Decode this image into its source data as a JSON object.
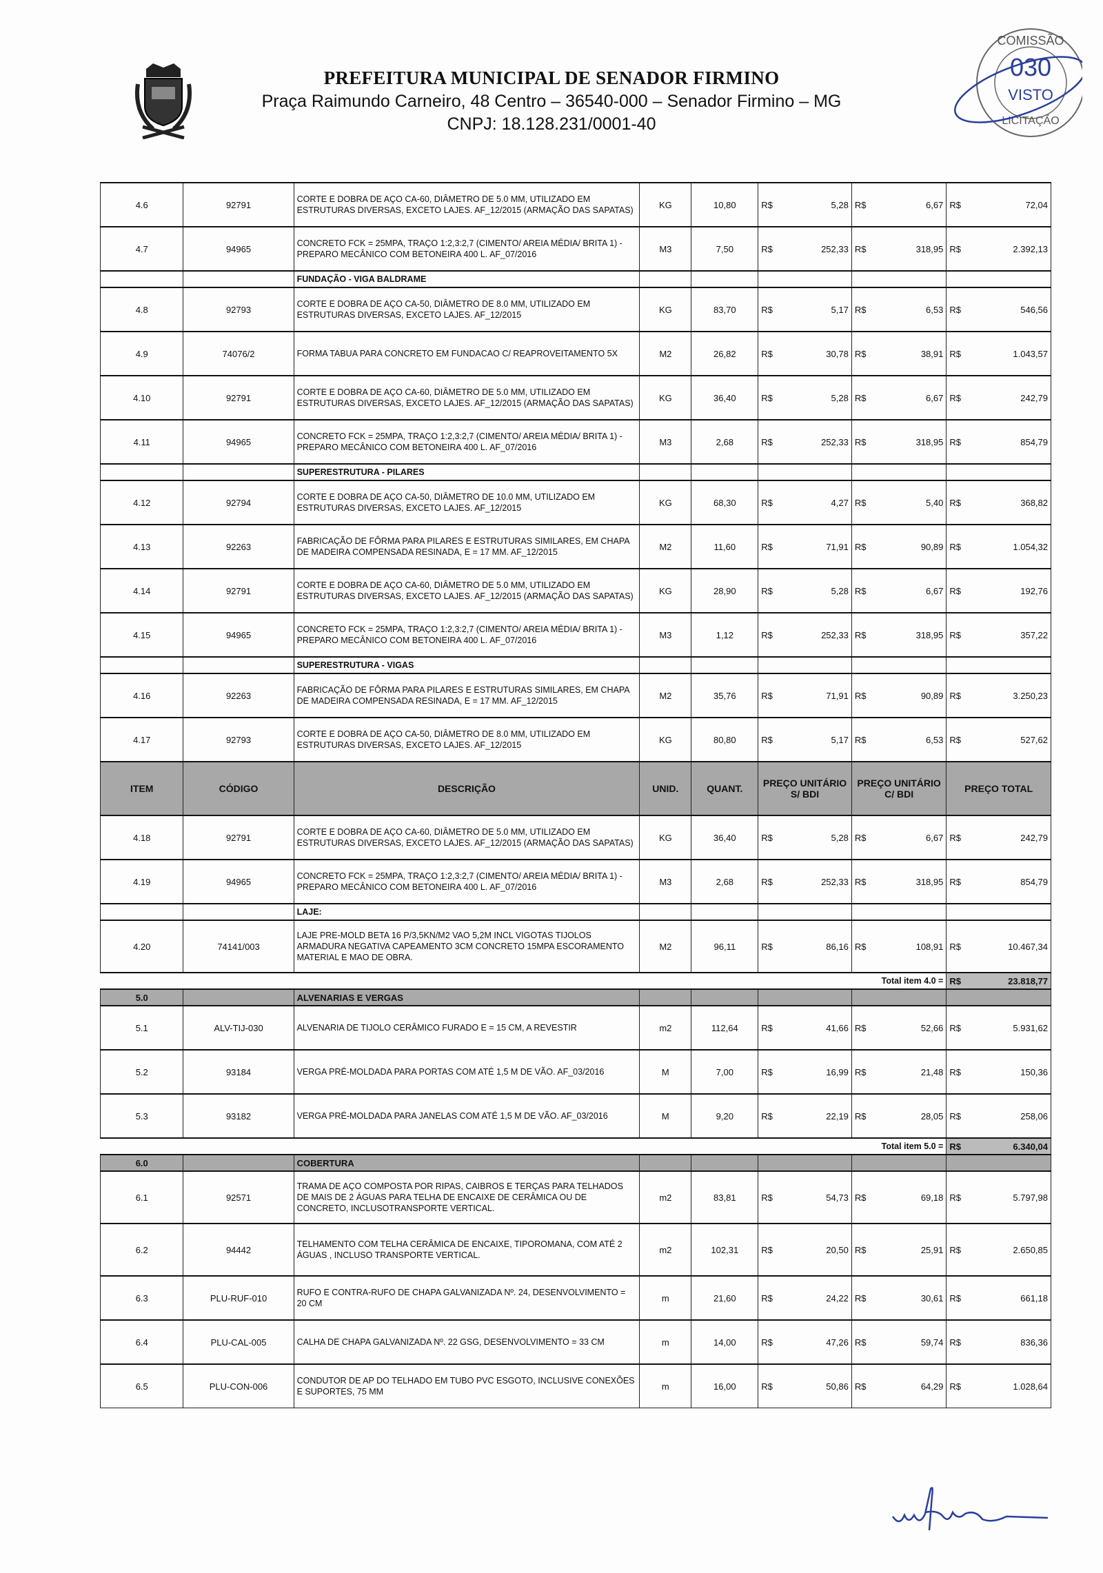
{
  "header": {
    "title": "PREFEITURA MUNICIPAL DE SENADOR FIRMINO",
    "address": "Praça Raimundo Carneiro, 48 Centro – 36540-000 – Senador Firmino – MG",
    "cnpj": "CNPJ: 18.128.231/0001-40"
  },
  "stamp": {
    "text": "COMISSÃO 030 VISTO LICITAÇÃO"
  },
  "signature": {
    "text": "unfila"
  },
  "currency": "R$",
  "columns": [
    "ITEM",
    "CÓDIGO",
    "DESCRIÇÃO",
    "UNID.",
    "QUANT.",
    "PREÇO UNITÁRIO S/ BDI",
    "PREÇO UNITÁRIO C/ BDI",
    "PREÇO TOTAL"
  ],
  "rows": [
    {
      "type": "item",
      "item": "4.6",
      "code": "92791",
      "desc": "CORTE E DOBRA DE AÇO CA-60, DIÂMETRO DE 5.0 MM, UTILIZADO EM ESTRUTURAS DIVERSAS, EXCETO LAJES. AF_12/2015 (ARMAÇÃO DAS SAPATAS)",
      "unit": "KG",
      "qty": "10,80",
      "pu": "5,28",
      "pb": "6,67",
      "total": "72,04"
    },
    {
      "type": "item",
      "item": "4.7",
      "code": "94965",
      "desc": "CONCRETO FCK = 25MPA, TRAÇO 1:2,3:2,7 (CIMENTO/ AREIA MÉDIA/ BRITA 1) - PREPARO MECÂNICO COM BETONEIRA 400 L. AF_07/2016",
      "unit": "M3",
      "qty": "7,50",
      "pu": "252,33",
      "pb": "318,95",
      "total": "2.392,13"
    },
    {
      "type": "section",
      "desc": "FUNDAÇÃO - VIGA BALDRAME"
    },
    {
      "type": "item",
      "item": "4.8",
      "code": "92793",
      "desc": "CORTE E DOBRA DE AÇO CA-50, DIÂMETRO DE 8.0 MM, UTILIZADO EM ESTRUTURAS DIVERSAS, EXCETO LAJES. AF_12/2015",
      "unit": "KG",
      "qty": "83,70",
      "pu": "5,17",
      "pb": "6,53",
      "total": "546,56"
    },
    {
      "type": "item",
      "item": "4.9",
      "code": "74076/2",
      "desc": "FORMA TABUA PARA CONCRETO EM FUNDACAO C/ REAPROVEITAMENTO 5X",
      "unit": "M2",
      "qty": "26,82",
      "pu": "30,78",
      "pb": "38,91",
      "total": "1.043,57"
    },
    {
      "type": "item",
      "item": "4.10",
      "code": "92791",
      "desc": "CORTE E DOBRA DE AÇO CA-60, DIÂMETRO DE 5.0 MM, UTILIZADO EM ESTRUTURAS DIVERSAS, EXCETO LAJES. AF_12/2015 (ARMAÇÃO DAS SAPATAS)",
      "unit": "KG",
      "qty": "36,40",
      "pu": "5,28",
      "pb": "6,67",
      "total": "242,79"
    },
    {
      "type": "item",
      "item": "4.11",
      "code": "94965",
      "desc": "CONCRETO FCK = 25MPA, TRAÇO 1:2,3:2,7 (CIMENTO/ AREIA MÉDIA/ BRITA 1) - PREPARO MECÂNICO COM BETONEIRA 400 L. AF_07/2016",
      "unit": "M3",
      "qty": "2,68",
      "pu": "252,33",
      "pb": "318,95",
      "total": "854,79"
    },
    {
      "type": "section",
      "desc": "SUPERESTRUTURA - PILARES"
    },
    {
      "type": "item",
      "item": "4.12",
      "code": "92794",
      "desc": "CORTE E DOBRA DE AÇO CA-50, DIÂMETRO DE 10.0 MM, UTILIZADO EM ESTRUTURAS DIVERSAS, EXCETO LAJES. AF_12/2015",
      "unit": "KG",
      "qty": "68,30",
      "pu": "4,27",
      "pb": "5,40",
      "total": "368,82"
    },
    {
      "type": "item",
      "item": "4.13",
      "code": "92263",
      "desc": "FABRICAÇÃO DE FÔRMA PARA PILARES E ESTRUTURAS SIMILARES, EM CHAPA DE MADEIRA COMPENSADA RESINADA, E = 17 MM. AF_12/2015",
      "unit": "M2",
      "qty": "11,60",
      "pu": "71,91",
      "pb": "90,89",
      "total": "1.054,32"
    },
    {
      "type": "item",
      "item": "4.14",
      "code": "92791",
      "desc": "CORTE E DOBRA DE AÇO CA-60, DIÂMETRO DE 5.0 MM, UTILIZADO EM ESTRUTURAS DIVERSAS, EXCETO LAJES. AF_12/2015 (ARMAÇÃO DAS SAPATAS)",
      "unit": "KG",
      "qty": "28,90",
      "pu": "5,28",
      "pb": "6,67",
      "total": "192,76"
    },
    {
      "type": "item",
      "item": "4.15",
      "code": "94965",
      "desc": "CONCRETO FCK = 25MPA, TRAÇO 1:2,3:2,7 (CIMENTO/ AREIA MÉDIA/ BRITA 1) - PREPARO MECÂNICO COM BETONEIRA 400 L. AF_07/2016",
      "unit": "M3",
      "qty": "1,12",
      "pu": "252,33",
      "pb": "318,95",
      "total": "357,22"
    },
    {
      "type": "section",
      "desc": "SUPERESTRUTURA - VIGAS"
    },
    {
      "type": "item",
      "item": "4.16",
      "code": "92263",
      "desc": "FABRICAÇÃO DE FÔRMA PARA PILARES E ESTRUTURAS SIMILARES, EM CHAPA DE MADEIRA COMPENSADA RESINADA, E = 17 MM. AF_12/2015",
      "unit": "M2",
      "qty": "35,76",
      "pu": "71,91",
      "pb": "90,89",
      "total": "3.250,23"
    },
    {
      "type": "item",
      "item": "4.17",
      "code": "92793",
      "desc": "CORTE E DOBRA DE AÇO CA-50, DIÂMETRO DE 8.0 MM, UTILIZADO EM ESTRUTURAS DIVERSAS, EXCETO LAJES. AF_12/2015",
      "unit": "KG",
      "qty": "80,80",
      "pu": "5,17",
      "pb": "6,53",
      "total": "527,62"
    },
    {
      "type": "colhdr"
    },
    {
      "type": "item",
      "item": "4.18",
      "code": "92791",
      "desc": "CORTE E DOBRA DE AÇO CA-60, DIÂMETRO DE 5.0 MM, UTILIZADO EM ESTRUTURAS DIVERSAS, EXCETO LAJES. AF_12/2015 (ARMAÇÃO DAS SAPATAS)",
      "unit": "KG",
      "qty": "36,40",
      "pu": "5,28",
      "pb": "6,67",
      "total": "242,79"
    },
    {
      "type": "item",
      "item": "4.19",
      "code": "94965",
      "desc": "CONCRETO FCK = 25MPA, TRAÇO 1:2,3:2,7 (CIMENTO/ AREIA MÉDIA/ BRITA 1) - PREPARO MECÂNICO COM BETONEIRA 400 L. AF_07/2016",
      "unit": "M3",
      "qty": "2,68",
      "pu": "252,33",
      "pb": "318,95",
      "total": "854,79"
    },
    {
      "type": "section",
      "desc": "LAJE:"
    },
    {
      "type": "item",
      "tall": true,
      "item": "4.20",
      "code": "74141/003",
      "desc": "LAJE PRE-MOLD BETA 16 P/3,5KN/M2 VAO 5,2M INCL VIGOTAS TIJOLOS ARMADURA NEGATIVA CAPEAMENTO 3CM CONCRETO 15MPA ESCORAMENTO MATERIAL E MAO DE OBRA.",
      "unit": "M2",
      "qty": "96,11",
      "pu": "86,16",
      "pb": "108,91",
      "total": "10.467,34"
    },
    {
      "type": "total",
      "label": "Total item 4.0 =",
      "total": "23.818,77"
    },
    {
      "type": "group",
      "item": "5.0",
      "desc": "ALVENARIAS E VERGAS"
    },
    {
      "type": "item",
      "item": "5.1",
      "code": "ALV-TIJ-030",
      "desc": "ALVENARIA DE TIJOLO CERÂMICO FURADO E = 15 CM, A REVESTIR",
      "unit": "m2",
      "qty": "112,64",
      "pu": "41,66",
      "pb": "52,66",
      "total": "5.931,62"
    },
    {
      "type": "item",
      "item": "5.2",
      "code": "93184",
      "desc": "VERGA PRÉ-MOLDADA PARA PORTAS COM ATÉ 1,5 M DE VÃO. AF_03/2016",
      "unit": "M",
      "qty": "7,00",
      "pu": "16,99",
      "pb": "21,48",
      "total": "150,36"
    },
    {
      "type": "item",
      "item": "5.3",
      "code": "93182",
      "desc": "VERGA PRÉ-MOLDADA PARA JANELAS COM ATÉ 1,5 M DE VÃO. AF_03/2016",
      "unit": "M",
      "qty": "9,20",
      "pu": "22,19",
      "pb": "28,05",
      "total": "258,06"
    },
    {
      "type": "total",
      "label": "Total item 5.0 =",
      "total": "6.340,04"
    },
    {
      "type": "group",
      "item": "6.0",
      "desc": "COBERTURA"
    },
    {
      "type": "item",
      "tall": true,
      "item": "6.1",
      "code": "92571",
      "desc": "TRAMA DE AÇO COMPOSTA POR RIPAS, CAIBROS E TERÇAS PARA TELHADOS DE MAIS DE 2 ÁGUAS PARA TELHA DE ENCAIXE DE CERÂMICA OU DE CONCRETO, INCLUSOTRANSPORTE VERTICAL.",
      "unit": "m2",
      "qty": "83,81",
      "pu": "54,73",
      "pb": "69,18",
      "total": "5.797,98"
    },
    {
      "type": "item",
      "tall": true,
      "item": "6.2",
      "code": "94442",
      "desc": "TELHAMENTO COM TELHA CERÂMICA DE ENCAIXE, TIPOROMANA, COM ATÉ 2 ÁGUAS , INCLUSO TRANSPORTE VERTICAL.",
      "unit": "m2",
      "qty": "102,31",
      "pu": "20,50",
      "pb": "25,91",
      "total": "2.650,85"
    },
    {
      "type": "item",
      "item": "6.3",
      "code": "PLU-RUF-010",
      "desc": "RUFO E CONTRA-RUFO DE CHAPA GALVANIZADA Nº. 24, DESENVOLVIMENTO = 20 CM",
      "unit": "m",
      "qty": "21,60",
      "pu": "24,22",
      "pb": "30,61",
      "total": "661,18"
    },
    {
      "type": "item",
      "item": "6.4",
      "code": "PLU-CAL-005",
      "desc": "CALHA DE CHAPA GALVANIZADA Nº. 22 GSG, DESENVOLVIMENTO = 33 CM",
      "unit": "m",
      "qty": "14,00",
      "pu": "47,26",
      "pb": "59,74",
      "total": "836,36"
    },
    {
      "type": "item",
      "item": "6.5",
      "code": "PLU-CON-006",
      "desc": "CONDUTOR DE AP DO TELHADO EM TUBO PVC ESGOTO, INCLUSIVE CONEXÕES E SUPORTES, 75 MM",
      "unit": "m",
      "qty": "16,00",
      "pu": "50,86",
      "pb": "64,29",
      "total": "1.028,64"
    }
  ]
}
